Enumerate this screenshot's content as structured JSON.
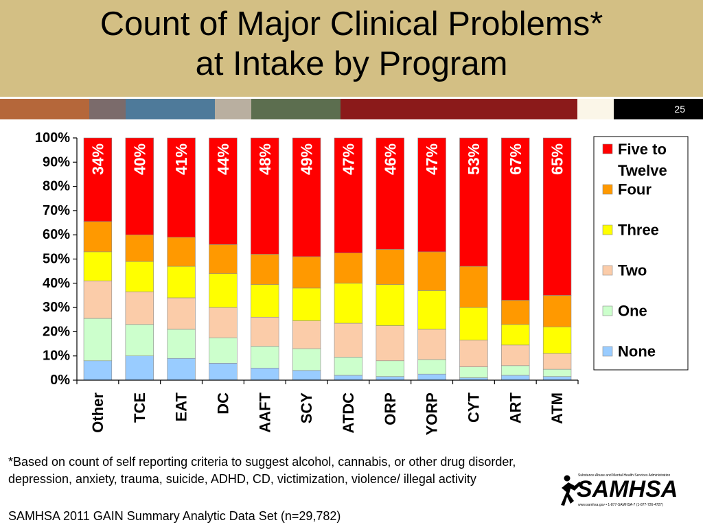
{
  "slide": {
    "title_line1": "Count of Major Clinical Problems*",
    "title_line2": "at Intake by Program",
    "slide_number": "25",
    "footnote": "*Based on count of self reporting criteria to suggest alcohol, cannabis, or other drug disorder, depression, anxiety, trauma, suicide, ADHD, CD, victimization, violence/ illegal activity",
    "source": "SAMHSA 2011 GAIN Summary Analytic Data Set (n=29,782)",
    "logo_text": "SAMHSA",
    "logo_tagline": "Substance Abuse and Mental Health Services Administration",
    "logo_contact": "www.samhsa.gov • 1-877-SAMHSA-7 (1-877-726-4727)",
    "strip_colors": [
      "#b5673a",
      "#7b6b6b",
      "#4e7a9a",
      "#b9afa0",
      "#5c6e4f",
      "#8b1a1a",
      "#fbf6e8",
      "#000000"
    ]
  },
  "chart_data": {
    "type": "bar",
    "stacked": true,
    "categories": [
      "Other",
      "TCE",
      "EAT",
      "DC",
      "AAFT",
      "SCY",
      "ATDC",
      "ORP",
      "YORP",
      "CYT",
      "ART",
      "ATM"
    ],
    "ylim": [
      0,
      100
    ],
    "y_tick_labels": [
      "0%",
      "10%",
      "20%",
      "30%",
      "40%",
      "50%",
      "60%",
      "70%",
      "80%",
      "90%",
      "100%"
    ],
    "legend_position": "right",
    "grid": false,
    "series": [
      {
        "name": "None",
        "color": "#99ccff",
        "values": [
          8,
          10,
          9,
          7,
          5,
          4,
          2,
          1.5,
          2.5,
          1,
          2,
          1.5
        ]
      },
      {
        "name": "One",
        "color": "#ccffcc",
        "values": [
          17.5,
          13,
          12,
          10.5,
          9,
          9,
          7.5,
          6.5,
          6,
          4.5,
          4,
          3
        ]
      },
      {
        "name": "Two",
        "color": "#fbcca9",
        "values": [
          15.5,
          13.5,
          13,
          12.5,
          12,
          11.5,
          14,
          14.5,
          12.5,
          11,
          8.5,
          6.5
        ]
      },
      {
        "name": "Three",
        "color": "#ffff00",
        "values": [
          12,
          12.5,
          13,
          14,
          13.5,
          13.5,
          16.5,
          17,
          16,
          13.5,
          8.5,
          11
        ]
      },
      {
        "name": "Four",
        "color": "#ff9900",
        "values": [
          12.5,
          11,
          12,
          12,
          12.5,
          13,
          12.5,
          14.5,
          16,
          17,
          10,
          13
        ]
      },
      {
        "name": "Five to Twelve",
        "color": "#ff0000",
        "values": [
          34.5,
          40,
          41,
          44,
          48,
          49,
          47.5,
          46,
          47,
          53,
          67,
          65
        ],
        "data_labels": [
          "34%",
          "40%",
          "41%",
          "44%",
          "48%",
          "49%",
          "47%",
          "46%",
          "47%",
          "53%",
          "67%",
          "65%"
        ]
      }
    ]
  }
}
